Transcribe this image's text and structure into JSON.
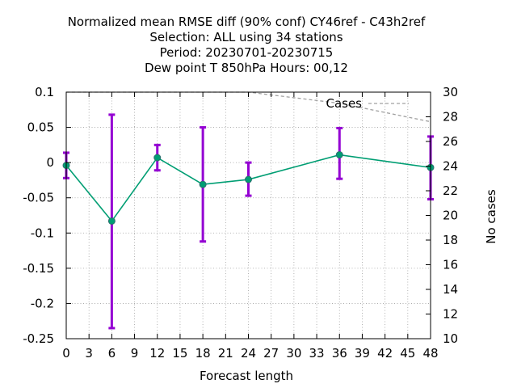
{
  "chart_data": {
    "type": "line",
    "title_lines": [
      "Normalized mean RMSE diff (90% conf) CY46ref - C43h2ref",
      "Selection: ALL using    34 stations",
      "Period: 20230701-20230715",
      "Dew point T 850hPa   Hours:  00,12"
    ],
    "xlabel": "Forecast length",
    "ylabel": "",
    "y2label": "No cases",
    "xlim": [
      0,
      48
    ],
    "ylim": [
      -0.25,
      0.1
    ],
    "y2lim": [
      10,
      30
    ],
    "x_ticks": [
      "0",
      "3",
      "6",
      "9",
      "12",
      "15",
      "18",
      "21",
      "24",
      "27",
      "30",
      "33",
      "36",
      "39",
      "42",
      "45",
      "48"
    ],
    "y_ticks": [
      "0.1",
      "0.05",
      "0",
      "-0.05",
      "-0.1",
      "-0.15",
      "-0.2",
      "-0.25"
    ],
    "y2_ticks": [
      "30",
      "28",
      "26",
      "24",
      "22",
      "20",
      "18",
      "16",
      "14",
      "12",
      "10"
    ],
    "grid": true,
    "legend_label": "Cases",
    "legend_position": "top-right",
    "colors": {
      "line": "#009e73",
      "errorbar": "#9400d3",
      "cases": "#a0a0a0",
      "grid": "#a0a0a0"
    },
    "series": [
      {
        "x": [
          0,
          6,
          12,
          18,
          24,
          36,
          48
        ],
        "y": [
          -0.004,
          -0.083,
          0.007,
          -0.031,
          -0.024,
          0.011,
          -0.007
        ],
        "err_low": [
          -0.022,
          -0.235,
          -0.011,
          -0.112,
          -0.047,
          -0.023,
          -0.052
        ],
        "err_high": [
          0.014,
          0.068,
          0.025,
          0.05,
          0.0,
          0.049,
          0.037
        ]
      }
    ],
    "cases": {
      "x": [
        0,
        6,
        12,
        18,
        24,
        36,
        48
      ],
      "y": [
        30,
        30,
        30,
        30,
        30,
        29.1,
        27.6
      ]
    }
  }
}
